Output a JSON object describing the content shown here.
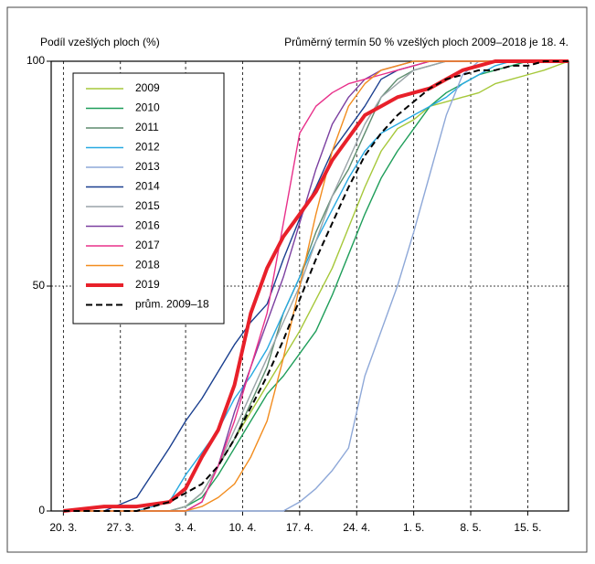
{
  "chart_data": {
    "type": "line",
    "y_label": "Podíl vzešlých ploch (%)",
    "subtitle": "Průměrný termín 50 % vzešlých ploch 2009–2018 je 18. 4.",
    "x": [
      79,
      84,
      88,
      92,
      94,
      96,
      98,
      100,
      102,
      104,
      106,
      108,
      110,
      112,
      114,
      116,
      118,
      120,
      122,
      124,
      126,
      128,
      130,
      132,
      134,
      136,
      138,
      141
    ],
    "xlim": [
      77.5,
      141
    ],
    "xticks": [
      {
        "value": 79,
        "label": "20. 3."
      },
      {
        "value": 86,
        "label": "27. 3."
      },
      {
        "value": 94,
        "label": "3. 4."
      },
      {
        "value": 101,
        "label": "10. 4."
      },
      {
        "value": 108,
        "label": "17. 4."
      },
      {
        "value": 115,
        "label": "24. 4."
      },
      {
        "value": 122,
        "label": "1. 5."
      },
      {
        "value": 129,
        "label": "8. 5."
      },
      {
        "value": 136,
        "label": "15. 5."
      }
    ],
    "ylim": [
      0,
      100
    ],
    "yticks": [
      0,
      50,
      100
    ],
    "grid": true,
    "legend": "upper left",
    "series": [
      {
        "name": "2009",
        "color": "#a6c83a",
        "values": [
          0,
          0,
          0,
          0,
          1,
          4,
          10,
          16,
          22,
          28,
          34,
          40,
          47,
          54,
          63,
          72,
          80,
          85,
          87,
          90,
          91,
          92,
          93,
          95,
          96,
          97,
          98,
          100
        ]
      },
      {
        "name": "2010",
        "color": "#1f9e5a",
        "values": [
          0,
          0,
          0,
          0,
          1,
          3,
          8,
          14,
          20,
          26,
          30,
          35,
          40,
          48,
          57,
          66,
          74,
          80,
          85,
          90,
          93,
          95,
          97,
          98,
          99,
          100,
          100,
          100
        ]
      },
      {
        "name": "2011",
        "color": "#5e8c6e",
        "values": [
          0,
          0,
          0,
          0,
          1,
          4,
          10,
          16,
          24,
          32,
          44,
          52,
          62,
          70,
          76,
          84,
          92,
          96,
          98,
          99,
          100,
          100,
          100,
          100,
          100,
          100,
          100,
          100
        ]
      },
      {
        "name": "2012",
        "color": "#27a9e1",
        "values": [
          0,
          0,
          0,
          2,
          8,
          13,
          18,
          25,
          30,
          36,
          44,
          52,
          60,
          67,
          74,
          80,
          84,
          86,
          88,
          90,
          92,
          95,
          97,
          99,
          100,
          100,
          100,
          100
        ]
      },
      {
        "name": "2013",
        "color": "#8ea8d8",
        "values": [
          0,
          0,
          0,
          0,
          0,
          0,
          0,
          0,
          0,
          0,
          0,
          2,
          5,
          9,
          14,
          30,
          40,
          50,
          62,
          75,
          88,
          97,
          100,
          100,
          100,
          100,
          100,
          100
        ]
      },
      {
        "name": "2014",
        "color": "#1a3f8f",
        "values": [
          0,
          0,
          3,
          14,
          20,
          25,
          31,
          37,
          42,
          46,
          56,
          65,
          72,
          80,
          85,
          90,
          96,
          98,
          99,
          100,
          100,
          100,
          100,
          100,
          100,
          100,
          100,
          100
        ]
      },
      {
        "name": "2015",
        "color": "#9aa4a8",
        "values": [
          0,
          0,
          0,
          0,
          1,
          4,
          10,
          18,
          26,
          34,
          42,
          50,
          60,
          70,
          78,
          86,
          92,
          95,
          98,
          99,
          100,
          100,
          100,
          100,
          100,
          100,
          100,
          100
        ]
      },
      {
        "name": "2016",
        "color": "#7b3fa0",
        "values": [
          0,
          0,
          0,
          0,
          0,
          2,
          10,
          22,
          32,
          42,
          52,
          64,
          76,
          86,
          92,
          96,
          98,
          99,
          100,
          100,
          100,
          100,
          100,
          100,
          100,
          100,
          100,
          100
        ]
      },
      {
        "name": "2017",
        "color": "#e8308a",
        "values": [
          0,
          0,
          0,
          0,
          0,
          2,
          10,
          20,
          32,
          44,
          64,
          84,
          90,
          93,
          95,
          96,
          97,
          98,
          99,
          100,
          100,
          100,
          100,
          100,
          100,
          100,
          100,
          100
        ]
      },
      {
        "name": "2018",
        "color": "#f28c1e",
        "values": [
          0,
          0,
          0,
          0,
          0,
          1,
          3,
          6,
          12,
          20,
          34,
          50,
          66,
          80,
          90,
          95,
          98,
          99,
          100,
          100,
          100,
          100,
          100,
          100,
          100,
          100,
          100,
          100
        ]
      },
      {
        "name": "2019",
        "color": "#e8202a",
        "width": 4,
        "values": [
          0,
          1,
          1,
          2,
          5,
          12,
          18,
          28,
          44,
          54,
          61,
          66,
          71,
          78,
          83,
          88,
          90,
          92,
          93,
          94,
          96,
          98,
          99,
          100,
          100,
          100,
          100,
          100
        ]
      },
      {
        "name": "prům. 2009–18",
        "color": "#000000",
        "dashed": true,
        "values": [
          0,
          0,
          0,
          2,
          4,
          6,
          10,
          16,
          23,
          30,
          38,
          47,
          56,
          64,
          72,
          79,
          84,
          88,
          91,
          94,
          96,
          97,
          98,
          98,
          99,
          99,
          100,
          100
        ]
      }
    ]
  }
}
